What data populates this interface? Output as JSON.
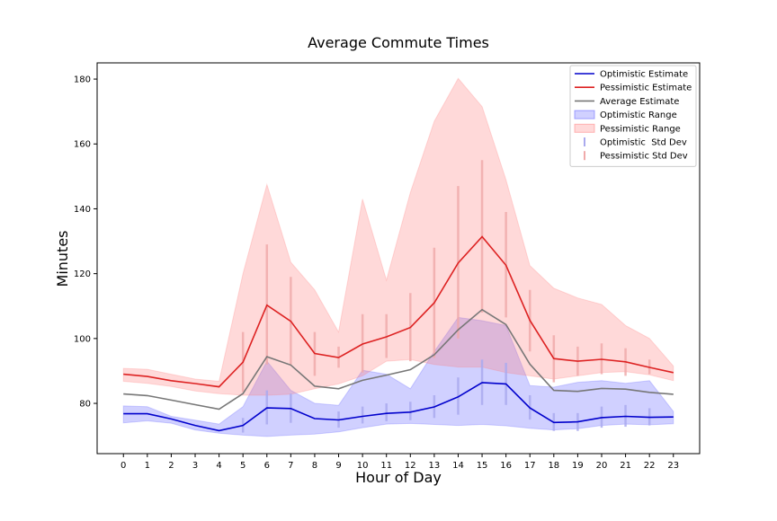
{
  "chart_data": {
    "type": "line",
    "title": "Average Commute Times",
    "xlabel": "Hour of Day",
    "ylabel": "Minutes",
    "x": [
      0,
      1,
      2,
      3,
      4,
      5,
      6,
      7,
      8,
      9,
      10,
      11,
      12,
      13,
      14,
      15,
      16,
      17,
      18,
      19,
      20,
      21,
      22,
      23
    ],
    "xlim": [
      -1.1,
      24.1
    ],
    "ylim": [
      64.5,
      185
    ],
    "yticks": [
      80,
      100,
      120,
      140,
      160,
      180
    ],
    "grid": false,
    "legend_position": "top-right",
    "series": [
      {
        "name": "Optimistic Estimate",
        "kind": "line",
        "color": "#0000cc",
        "values": [
          76.8,
          76.8,
          75.2,
          73.2,
          71.6,
          73.2,
          78.6,
          78.4,
          75.3,
          74.9,
          76.0,
          76.9,
          77.3,
          78.9,
          82.0,
          86.4,
          86.0,
          78.6,
          74.1,
          74.3,
          75.6,
          76.0,
          75.7,
          75.8
        ]
      },
      {
        "name": "Pessimistic Estimate",
        "kind": "line",
        "color": "#dd2222",
        "values": [
          89.0,
          88.3,
          87.0,
          86.1,
          85.1,
          92.7,
          110.3,
          105.3,
          95.4,
          94.1,
          98.3,
          100.5,
          103.4,
          111.0,
          123.3,
          131.4,
          122.6,
          105.6,
          93.8,
          93.0,
          93.6,
          92.8,
          91.1,
          89.5
        ]
      },
      {
        "name": "Average Estimate",
        "kind": "line",
        "color": "#777777",
        "values": [
          82.9,
          82.4,
          81.0,
          79.6,
          78.2,
          83.0,
          94.4,
          91.8,
          85.3,
          84.5,
          87.1,
          88.7,
          90.4,
          95.0,
          102.7,
          108.9,
          104.3,
          92.1,
          84.0,
          83.7,
          84.6,
          84.4,
          83.4,
          82.8
        ]
      },
      {
        "name": "Optimistic Range",
        "kind": "band",
        "color": "#5555ff",
        "lower": [
          74.0,
          74.6,
          73.9,
          71.8,
          70.8,
          70.2,
          69.8,
          70.2,
          70.5,
          71.2,
          72.5,
          73.6,
          73.8,
          73.5,
          73.2,
          73.5,
          73.1,
          72.3,
          71.8,
          72.2,
          73.2,
          73.6,
          73.4,
          73.7
        ],
        "upper": [
          79.2,
          79.0,
          76.0,
          74.8,
          73.6,
          79.0,
          93.0,
          84.0,
          80.0,
          79.4,
          90.2,
          89.0,
          84.5,
          96.0,
          106.5,
          105.5,
          104.0,
          85.5,
          85.0,
          86.5,
          87.0,
          86.2,
          87.0,
          77.5
        ]
      },
      {
        "name": "Pessimistic Range",
        "kind": "band",
        "color": "#ff7777",
        "lower": [
          86.8,
          86.2,
          85.2,
          83.8,
          83.0,
          82.5,
          82.5,
          82.8,
          84.5,
          86.0,
          88.5,
          93.0,
          93.5,
          92.0,
          91.2,
          91.2,
          89.5,
          88.5,
          87.5,
          88.5,
          89.5,
          89.8,
          88.8,
          87.0
        ],
        "upper": [
          90.8,
          90.5,
          89.0,
          87.5,
          86.8,
          120.0,
          147.5,
          123.5,
          115.0,
          102.0,
          143.0,
          118.0,
          145.0,
          167.0,
          180.2,
          171.5,
          149.0,
          122.5,
          115.5,
          112.5,
          110.5,
          104.0,
          100.0,
          91.5
        ]
      },
      {
        "name": "Optimistic  Std Dev",
        "kind": "errorbar",
        "color": "#aaaaee",
        "lower": [
          null,
          null,
          null,
          null,
          null,
          71.0,
          73.5,
          74.0,
          null,
          72.5,
          73.8,
          74.5,
          74.8,
          75.5,
          76.5,
          79.5,
          79.5,
          75.0,
          71.5,
          71.5,
          72.5,
          72.8,
          73.2,
          null
        ],
        "upper": [
          null,
          null,
          null,
          null,
          null,
          75.5,
          84.0,
          83.0,
          null,
          77.5,
          79.0,
          80.0,
          80.5,
          82.5,
          88.0,
          93.5,
          92.5,
          82.5,
          77.0,
          77.0,
          79.0,
          79.5,
          78.5,
          null
        ]
      },
      {
        "name": "Pessimistic Std Dev",
        "kind": "errorbar",
        "color": "#f0aaaa",
        "lower": [
          null,
          null,
          null,
          null,
          null,
          83.5,
          92.0,
          92.0,
          88.5,
          91.0,
          89.5,
          94.0,
          93.0,
          94.0,
          100.0,
          108.0,
          106.5,
          96.0,
          86.5,
          88.5,
          89.0,
          88.5,
          89.0,
          null
        ],
        "upper": [
          null,
          null,
          null,
          null,
          null,
          102.0,
          129.0,
          119.0,
          102.0,
          97.5,
          107.5,
          107.5,
          114.0,
          128.0,
          147.0,
          155.0,
          139.0,
          115.0,
          101.0,
          97.5,
          98.5,
          97.0,
          93.5,
          null
        ]
      }
    ]
  }
}
